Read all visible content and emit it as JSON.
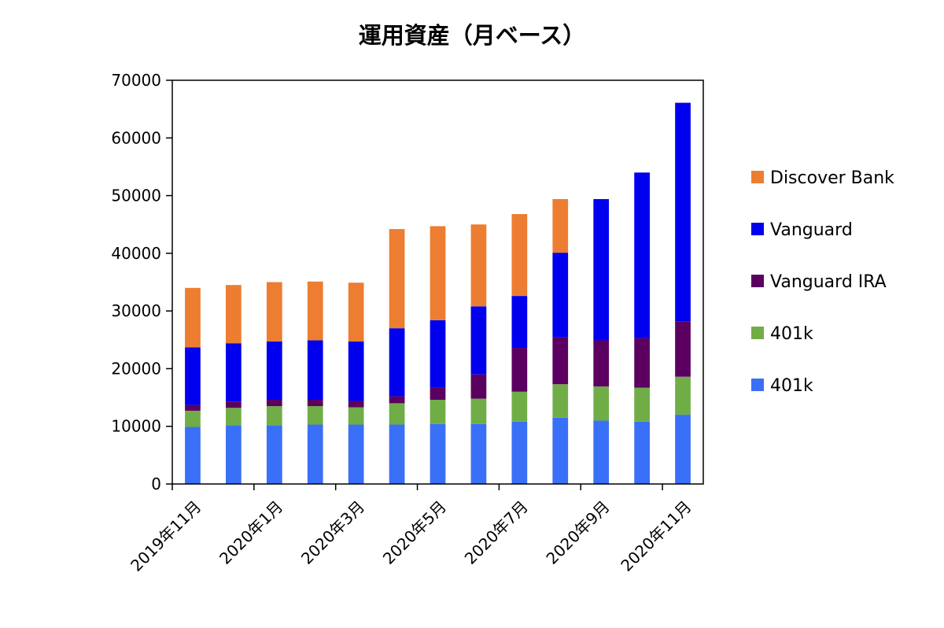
{
  "chart_data": {
    "type": "bar",
    "stacked": true,
    "title": "運用資産（月ベース）",
    "xlabel": "",
    "ylabel": "",
    "ylim": [
      0,
      70000
    ],
    "yticks": [
      0,
      10000,
      20000,
      30000,
      40000,
      50000,
      60000,
      70000
    ],
    "grid": false,
    "legend_position": "right",
    "categories": [
      "2019年11月",
      "2019年12月",
      "2020年1月",
      "2020年2月",
      "2020年3月",
      "2020年4月",
      "2020年5月",
      "2020年6月",
      "2020年7月",
      "2020年8月",
      "2020年9月",
      "2020年10月",
      "2020年11月"
    ],
    "category_labels_shown": [
      "2019年11月",
      "",
      "2020年1月",
      "",
      "2020年3月",
      "",
      "2020年5月",
      "",
      "2020年7月",
      "",
      "2020年9月",
      "",
      "2020年11月"
    ],
    "series": [
      {
        "name": "401k",
        "color": "#3a6ff7",
        "values": [
          9900,
          10200,
          10200,
          10300,
          10300,
          10300,
          10400,
          10400,
          10800,
          11500,
          11000,
          10800,
          12000
        ]
      },
      {
        "name": "401k",
        "color": "#70ad47",
        "values": [
          2800,
          3000,
          3300,
          3200,
          3000,
          3700,
          4200,
          4400,
          5200,
          5800,
          5900,
          5900,
          6600
        ]
      },
      {
        "name": "Vanguard IRA",
        "color": "#5b0060",
        "values": [
          1000,
          1100,
          1100,
          1100,
          1100,
          1200,
          2100,
          4200,
          7600,
          8100,
          8000,
          8600,
          9600
        ]
      },
      {
        "name": "Vanguard",
        "color": "#0000ee",
        "values": [
          10000,
          10100,
          10100,
          10300,
          10300,
          11800,
          11700,
          11800,
          9000,
          14700,
          24500,
          28700,
          37900
        ]
      },
      {
        "name": "Discover Bank",
        "color": "#ed7d31",
        "values": [
          10300,
          10100,
          10300,
          10200,
          10200,
          17200,
          16300,
          14200,
          14200,
          9300,
          0,
          0,
          0
        ]
      }
    ],
    "legend_order": [
      4,
      3,
      2,
      1,
      0
    ]
  }
}
